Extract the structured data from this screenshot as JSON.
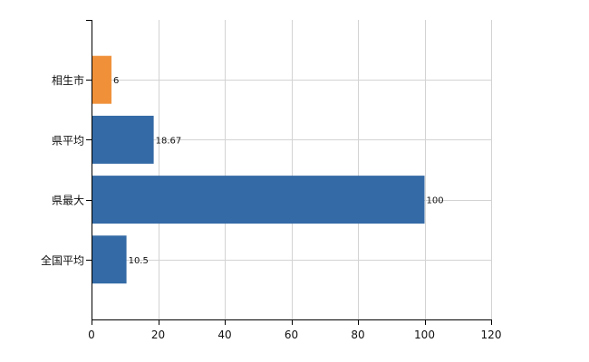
{
  "chart_data": {
    "type": "bar",
    "orientation": "horizontal",
    "categories": [
      "相生市",
      "県平均",
      "県最大",
      "全国平均"
    ],
    "values": [
      6,
      18.67,
      100,
      10.5
    ],
    "value_labels": [
      "6",
      "18.67",
      "100",
      "10.5"
    ],
    "bar_colors": [
      "#f0913a",
      "#346aa5",
      "#346aa5",
      "#346aa5"
    ],
    "xlim": [
      0,
      120
    ],
    "x_ticks": [
      0,
      20,
      40,
      60,
      80,
      100,
      120
    ],
    "x_tick_labels": [
      "0",
      "20",
      "40",
      "60",
      "80",
      "100",
      "120"
    ],
    "title": "",
    "xlabel": "",
    "ylabel": "",
    "grid": true,
    "legend": "none"
  },
  "colors": {
    "highlight": "#f0913a",
    "default_bar": "#346aa5",
    "grid": "#d3d3d3",
    "axis": "#000000"
  }
}
